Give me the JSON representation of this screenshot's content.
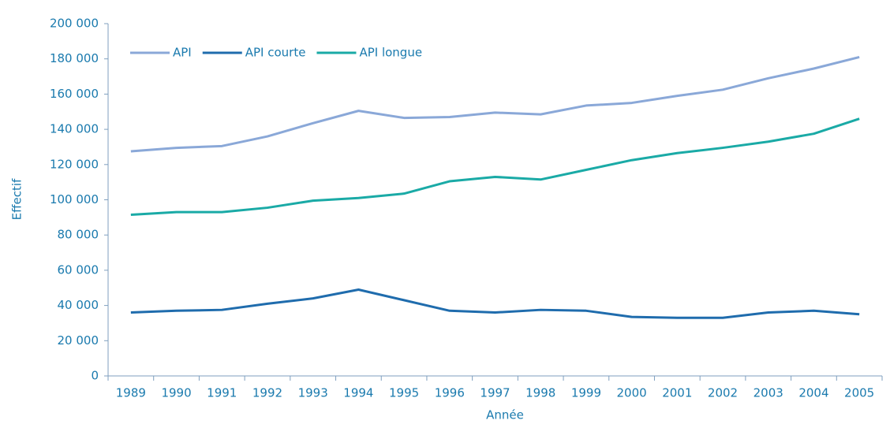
{
  "chart_data": {
    "type": "line",
    "x_label": "Année",
    "y_label": "Effectif",
    "categories": [
      "1989",
      "1990",
      "1991",
      "1992",
      "1993",
      "1994",
      "1995",
      "1996",
      "1997",
      "1998",
      "1999",
      "2000",
      "2001",
      "2002",
      "2003",
      "2004",
      "2005"
    ],
    "series": [
      {
        "name": "API",
        "color": "#8aa8d8",
        "values": [
          127500,
          129500,
          130500,
          136000,
          143500,
          150500,
          146500,
          147000,
          149500,
          148500,
          153500,
          155000,
          159000,
          162500,
          169000,
          174500,
          181000
        ]
      },
      {
        "name": "API courte",
        "color": "#1f6cad",
        "values": [
          36000,
          37000,
          37500,
          41000,
          44000,
          49000,
          43000,
          37000,
          36000,
          37500,
          37000,
          33500,
          33000,
          33000,
          36000,
          37000,
          35000
        ]
      },
      {
        "name": "API longue",
        "color": "#1aaaa6",
        "values": [
          91500,
          93000,
          93000,
          95500,
          99500,
          101000,
          103500,
          110500,
          113000,
          111500,
          117000,
          122500,
          126500,
          129500,
          133000,
          137500,
          146000
        ]
      }
    ],
    "ylim": [
      0,
      200000
    ],
    "yticks": [
      0,
      {
        "value": 20000,
        "label": "20 000"
      },
      {
        "value": 40000,
        "label": "40 000"
      },
      {
        "value": 60000,
        "label": "60 000"
      },
      {
        "value": 80000,
        "label": "80 000"
      },
      {
        "value": 100000,
        "label": "100 000"
      },
      {
        "value": 120000,
        "label": "120 000"
      },
      {
        "value": 140000,
        "label": "140 000"
      },
      {
        "value": 160000,
        "label": "160 000"
      },
      {
        "value": 180000,
        "label": "180 000"
      },
      {
        "value": 200000,
        "label": "200 000"
      }
    ],
    "grid": false,
    "legend": "top-left"
  }
}
